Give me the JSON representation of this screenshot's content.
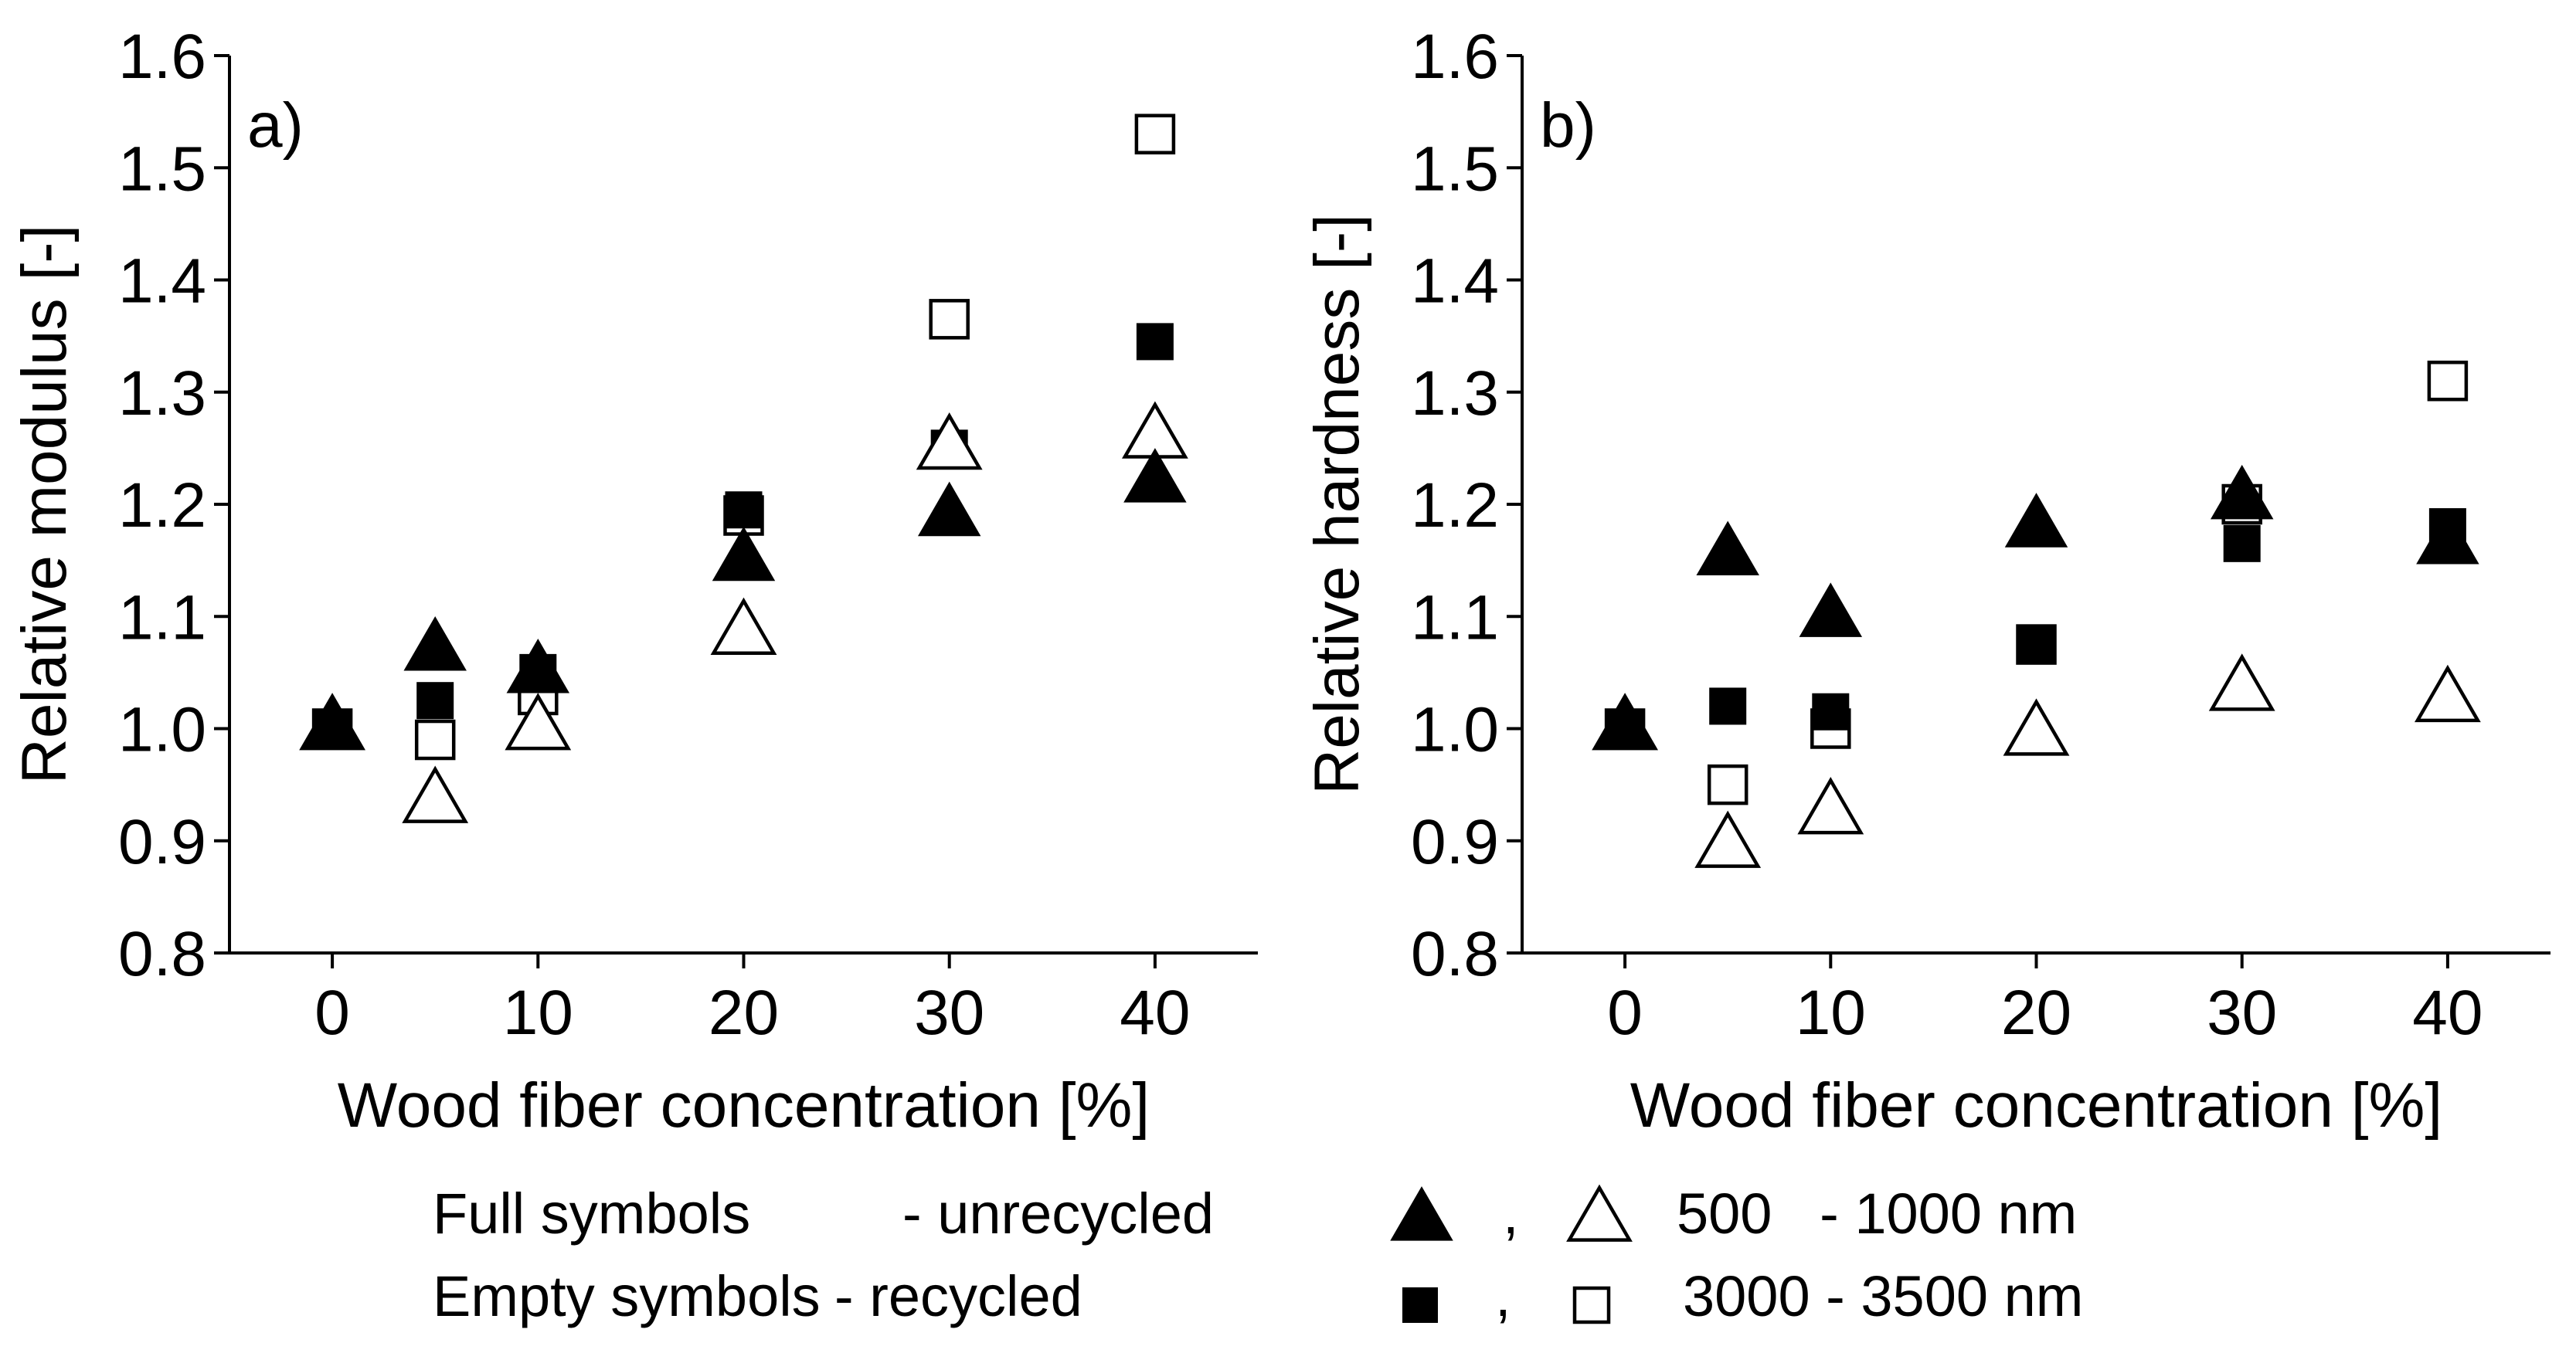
{
  "charts": [
    {
      "panel_label": "a)",
      "chart_data": {
        "type": "scatter",
        "title": "",
        "xlabel": "Wood fiber concentration [%]",
        "ylabel": "Relative modulus [-]",
        "xlim": [
          -5,
          45
        ],
        "ylim": [
          0.8,
          1.6
        ],
        "xticks": [
          0,
          10,
          20,
          30,
          40
        ],
        "xtick_labels": [
          "0",
          "10",
          "20",
          "30",
          "40"
        ],
        "yticks": [
          0.8,
          0.9,
          1.0,
          1.1,
          1.2,
          1.3,
          1.4,
          1.5,
          1.6
        ],
        "ytick_labels": [
          "0.8",
          "0.9",
          "1.0",
          "1.1",
          "1.2",
          "1.3",
          "1.4",
          "1.5",
          "1.6"
        ],
        "series": [
          {
            "name": "unrecycled 500 - 1000 nm",
            "marker": "triangle",
            "filled": true,
            "x": [
              0,
              5,
              10,
              20,
              30,
              40
            ],
            "y": [
              1.0,
              1.07,
              1.05,
              1.15,
              1.19,
              1.22
            ]
          },
          {
            "name": "recycled 500 - 1000 nm",
            "marker": "triangle",
            "filled": false,
            "x": [
              0,
              5,
              10,
              20,
              30,
              40
            ],
            "y": [
              1.0,
              0.935,
              1.0,
              1.085,
              1.25,
              1.26
            ]
          },
          {
            "name": "unrecycled 3000 - 3500 nm",
            "marker": "square",
            "filled": true,
            "x": [
              0,
              5,
              10,
              20,
              30,
              40
            ],
            "y": [
              1.0,
              1.025,
              1.05,
              1.195,
              1.25,
              1.345
            ]
          },
          {
            "name": "recycled 3000 - 3500 nm",
            "marker": "square",
            "filled": false,
            "x": [
              0,
              5,
              10,
              20,
              30,
              40
            ],
            "y": [
              1.0,
              0.99,
              1.03,
              1.19,
              1.365,
              1.53
            ]
          }
        ]
      }
    },
    {
      "panel_label": "b)",
      "chart_data": {
        "type": "scatter",
        "title": "",
        "xlabel": "Wood fiber concentration [%]",
        "ylabel": "Relative hardness [-]",
        "xlim": [
          -5,
          45
        ],
        "ylim": [
          0.8,
          1.6
        ],
        "xticks": [
          0,
          10,
          20,
          30,
          40
        ],
        "xtick_labels": [
          "0",
          "10",
          "20",
          "30",
          "40"
        ],
        "yticks": [
          0.8,
          0.9,
          1.0,
          1.1,
          1.2,
          1.3,
          1.4,
          1.5,
          1.6
        ],
        "ytick_labels": [
          "0.8",
          "0.9",
          "1.0",
          "1.1",
          "1.2",
          "1.3",
          "1.4",
          "1.5",
          "1.6"
        ],
        "series": [
          {
            "name": "unrecycled 500 - 1000 nm",
            "marker": "triangle",
            "filled": true,
            "x": [
              0,
              5,
              10,
              20,
              30,
              40
            ],
            "y": [
              1.0,
              1.155,
              1.1,
              1.18,
              1.205,
              1.165
            ]
          },
          {
            "name": "recycled 500 - 1000 nm",
            "marker": "triangle",
            "filled": false,
            "x": [
              0,
              5,
              10,
              20,
              30,
              40
            ],
            "y": [
              1.0,
              0.895,
              0.925,
              0.995,
              1.035,
              1.025
            ]
          },
          {
            "name": "unrecycled 3000 - 3500 nm",
            "marker": "square",
            "filled": true,
            "x": [
              0,
              5,
              10,
              20,
              30,
              40
            ],
            "y": [
              1.0,
              1.02,
              1.015,
              1.075,
              1.165,
              1.18
            ]
          },
          {
            "name": "recycled 3000 - 3500 nm",
            "marker": "square",
            "filled": false,
            "x": [
              0,
              5,
              10,
              20,
              30,
              40
            ],
            "y": [
              1.0,
              0.95,
              1.0,
              1.075,
              1.2,
              1.31
            ]
          }
        ]
      }
    }
  ],
  "legend": {
    "full_symbols": "Full symbols",
    "unrecycled": "- unrecycled",
    "empty_symbols": "Empty symbols",
    "recycled": "- recycled",
    "comma": ",",
    "size_small": "500   - 1000 nm",
    "size_large": "3000 - 3500 nm"
  }
}
